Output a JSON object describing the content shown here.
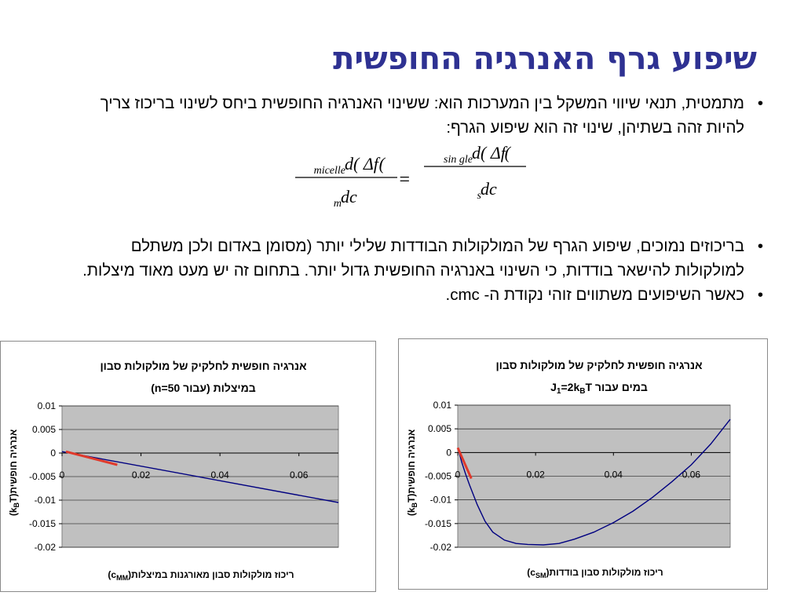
{
  "title": "שיפוע גרף האנרגיה החופשית",
  "bullets": [
    {
      "text": "מתמטית, תנאי שיווי המשקל בין המערכות הוא: ששינוי האנרגיה החופשית ביחס לשינוי בריכוז צריך להיות זהה בשתיהן, שינוי זה הוא שיפוע הגרף:"
    },
    {
      "text": "בריכוזים נמוכים, שיפוע הגרף של המולקולות הבודדות שלילי יותר (מסומן באדום ולכן משתלם למולקולות להישאר בודדות, כי השינוי באנרגיה החופשית גדול יותר. בתחום זה יש מעט מאוד מיצלות."
    },
    {
      "text": "כאשר השיפועים משתווים זוהי נקודת ה- cmc."
    }
  ],
  "bullet_symbol": "•",
  "formula": {
    "lhs_num": "d( Δf",
    "lhs_sub": "micelle",
    "lhs_num_close": " )",
    "lhs_den": "dc",
    "lhs_den_sub": "m",
    "equals": "=",
    "rhs_num": "d( Δf",
    "rhs_sub": "sin gle",
    "rhs_num_close": " )",
    "rhs_den": "dc",
    "rhs_den_sub": "s"
  },
  "colors": {
    "title": "#2e3192",
    "plot_bg": "#c0c0c0",
    "curve": "#000080",
    "highlight": "#e0392b"
  },
  "chart_data": [
    {
      "type": "line",
      "title_line1": "אנרגיה חופשית לחלקיק של מולקולות סבון",
      "title_line2": "במיצלות (עבור n=50)",
      "xlabel": "ריכוז מולקולות סבון מאורגנות במיצלות(c",
      "xlabel_sub": "MM",
      "xlabel_close": ")",
      "ylabel": "אנרגיה חופשית(k",
      "ylabel_sub": "B",
      "ylabel_close": "T)",
      "xlim": [
        0,
        0.07
      ],
      "ylim": [
        -0.02,
        0.01
      ],
      "xticks": [
        "0",
        "0.02",
        "0.04",
        "0.06"
      ],
      "yticks": [
        "0.01",
        "0.005",
        "0",
        "-0.005",
        "-0.01",
        "-0.015",
        "-0.02"
      ],
      "series": [
        {
          "x": [
            0,
            0.07
          ],
          "y": [
            0.0003,
            -0.0105
          ]
        }
      ],
      "highlight": {
        "x": [
          0.001,
          0.014
        ],
        "y": [
          0.0003,
          -0.0025
        ]
      }
    },
    {
      "type": "line",
      "title_line1": "אנרגיה חופשית לחלקיק של מולקולות סבון",
      "title_line2_pre": "במים עבור J",
      "title_line2_sub1": "1",
      "title_line2_mid": "=2k",
      "title_line2_sub2": "B",
      "title_line2_post": "T",
      "xlabel": "ריכוז מולקולות סבון בודדות(c",
      "xlabel_sub": "SM",
      "xlabel_close": ")",
      "ylabel": "אנרגיה חופשית(k",
      "ylabel_sub": "B",
      "ylabel_close": "T)",
      "xlim": [
        0,
        0.07
      ],
      "ylim": [
        -0.02,
        0.01
      ],
      "xticks": [
        "0",
        "0.02",
        "0.04",
        "0.06"
      ],
      "yticks": [
        "0.01",
        "0.005",
        "0",
        "-0.005",
        "-0.01",
        "-0.015",
        "-0.02"
      ],
      "series": [
        {
          "x": [
            0.0002,
            0.001,
            0.002,
            0.003,
            0.005,
            0.007,
            0.009,
            0.012,
            0.015,
            0.018,
            0.022,
            0.026,
            0.03,
            0.035,
            0.04,
            0.045,
            0.05,
            0.055,
            0.06,
            0.065,
            0.07
          ],
          "y": [
            0.0005,
            -0.002,
            -0.0045,
            -0.0068,
            -0.011,
            -0.0145,
            -0.0168,
            -0.0185,
            -0.0192,
            -0.0194,
            -0.0195,
            -0.0192,
            -0.0183,
            -0.0168,
            -0.0148,
            -0.0124,
            -0.0095,
            -0.0062,
            -0.0026,
            0.0018,
            0.007
          ]
        }
      ],
      "highlight": {
        "x": [
          0,
          0.0035
        ],
        "y": [
          0.001,
          -0.0055
        ]
      }
    }
  ]
}
